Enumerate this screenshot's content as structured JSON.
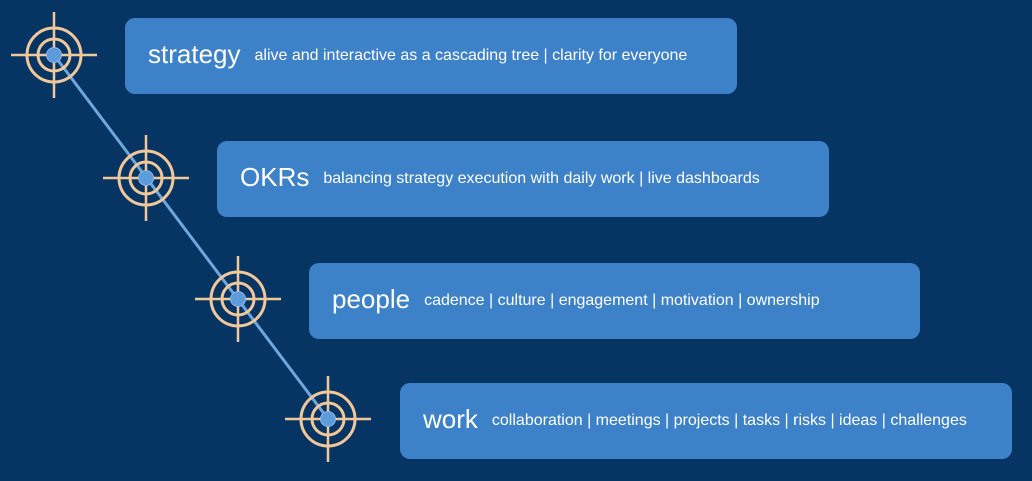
{
  "colors": {
    "background": "#063563",
    "card": "#3d82c9",
    "connector": "#6fa6dc",
    "target_ring": "#f2c79a",
    "target_dot": "#5d9bdb",
    "text": "#ffffff"
  },
  "items": [
    {
      "title": "strategy",
      "description": "alive and interactive as a cascading tree | clarity for everyone",
      "icon": "target-icon"
    },
    {
      "title": "OKRs",
      "description": "balancing strategy execution with daily work | live dashboards",
      "icon": "target-icon"
    },
    {
      "title": "people",
      "description": "cadence | culture | engagement | motivation | ownership",
      "icon": "target-icon"
    },
    {
      "title": "work",
      "description": "collaboration | meetings | projects | tasks | risks | ideas | challenges",
      "icon": "target-icon"
    }
  ]
}
